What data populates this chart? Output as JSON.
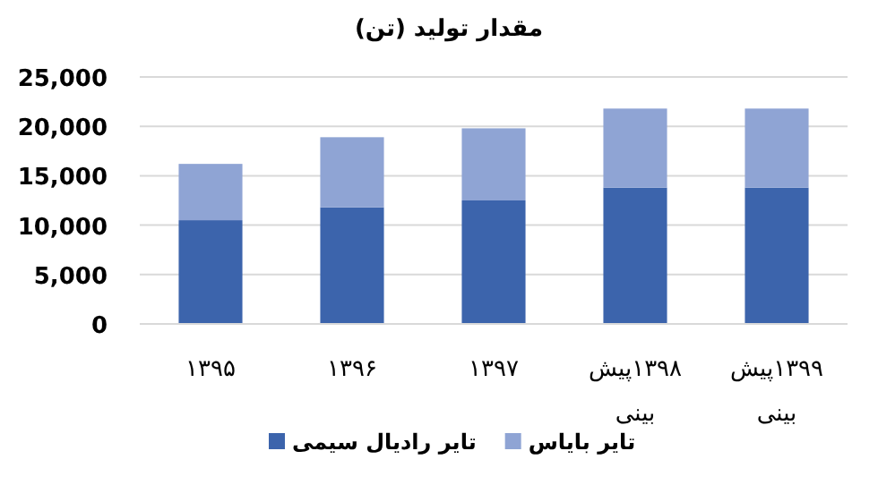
{
  "chart_data": {
    "type": "bar",
    "title": "مقدار تولید (تن)",
    "stacked": true,
    "categories": [
      "۱۳۹۵",
      "۱۳۹۶",
      "۱۳۹۷",
      "۱۳۹۸پیش بینی",
      "۱۳۹۹پیش بینی"
    ],
    "series": [
      {
        "name": "تایر رادیال سیمی",
        "color": "#3c64ac",
        "values": [
          10500,
          11800,
          12500,
          13800,
          13800
        ]
      },
      {
        "name": "تایر بایاس",
        "color": "#8fa4d4",
        "values": [
          5700,
          7100,
          7300,
          8000,
          8000
        ]
      }
    ],
    "ylim": [
      0,
      25000
    ],
    "yticks": [
      {
        "value": 0,
        "label": "0"
      },
      {
        "value": 5000,
        "label": "5,000"
      },
      {
        "value": 10000,
        "label": "10,000"
      },
      {
        "value": 15000,
        "label": "15,000"
      },
      {
        "value": 20000,
        "label": "20,000"
      },
      {
        "value": 25000,
        "label": "25,000"
      }
    ],
    "grid": "y",
    "legend": "bottom"
  }
}
